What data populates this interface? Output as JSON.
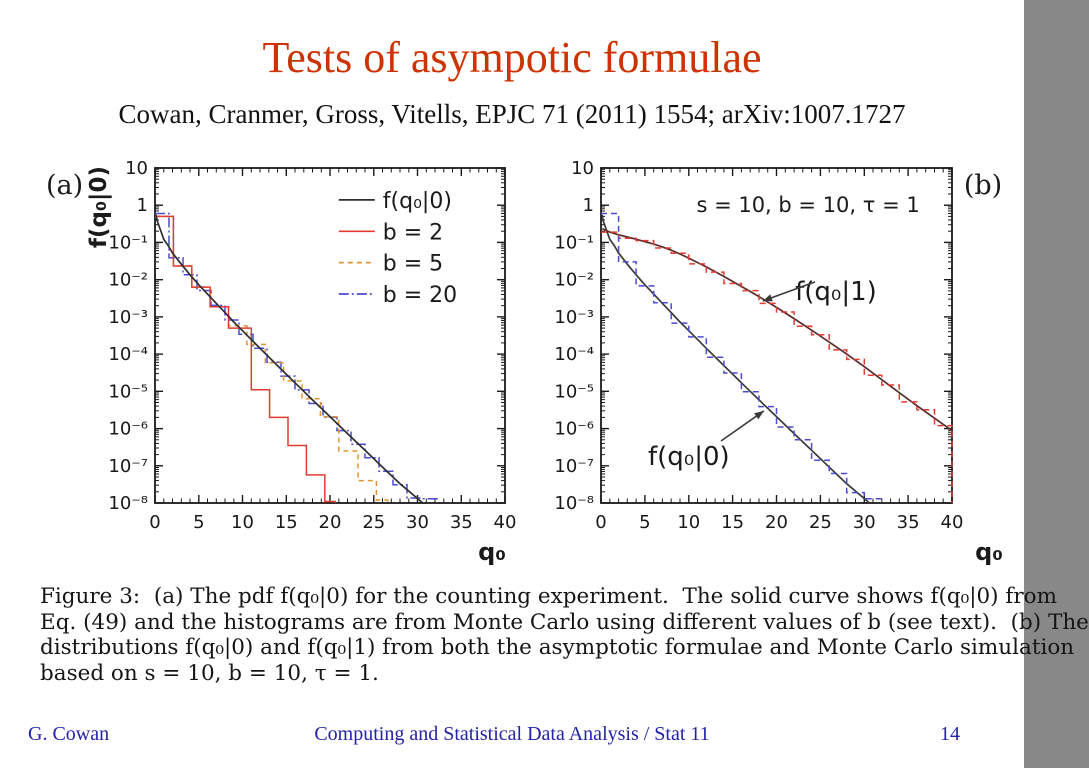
{
  "slide": {
    "title": "Tests of asympotic formulae",
    "citation": "Cowan, Cranmer, Gross, Vitells, EPJC 71 (2011) 1554; arXiv:1007.1727",
    "colors": {
      "title": "#cc3300",
      "footer": "#2323a8",
      "axis": "#1a1a1a",
      "red": "#e23b32",
      "orange": "#df9632",
      "blue": "#4a4ad2",
      "black_curve": "#2e2e2e",
      "maroon_curve": "#5a2d2d"
    }
  },
  "caption": {
    "lines": [
      "Figure 3:  (a) The pdf f(q₀|0) for the counting experiment.  The solid curve shows f(q₀|0) from",
      "Eq. (49) and the histograms are from Monte Carlo using different values of b (see text).  (b) The",
      "distributions f(q₀|0) and f(q₀|1) from both the asymptotic formulae and Monte Carlo simulation",
      "based on s = 10, b = 10, τ = 1."
    ]
  },
  "footer": {
    "author": "G. Cowan",
    "course": "Computing and Statistical Data Analysis / Stat 11",
    "page": "14"
  },
  "chart_data": [
    {
      "panel": "(a)",
      "type": "line",
      "xlabel": "q₀",
      "ylabel": "f(q₀|0)",
      "xlim": [
        0,
        40
      ],
      "ylim_exponents": [
        -8,
        1
      ],
      "x_major_ticks": [
        0,
        5,
        10,
        15,
        20,
        25,
        30,
        35,
        40
      ],
      "y_decades": [
        1,
        0,
        -1,
        -2,
        -3,
        -4,
        -5,
        -6,
        -7,
        -8
      ],
      "grid": false,
      "legend": {
        "fx": 0.525,
        "fy": 0.119,
        "dy": 0.0937,
        "entries": [
          {
            "label": "f(q₀|0)",
            "color": "#2e2e2e",
            "dash": "",
            "width": 1.7
          },
          {
            "label": "b = 2",
            "color": "#e23b32",
            "dash": "",
            "width": 1.7
          },
          {
            "label": "b = 5",
            "color": "#df9632",
            "dash": "5 4",
            "width": 1.7
          },
          {
            "label": "b = 20",
            "color": "#4a4ad2",
            "dash": "10 3 2 3",
            "width": 1.7
          }
        ]
      },
      "series": [
        {
          "name": "hist-b20",
          "kind": "hist",
          "color": "#4a4ad2",
          "width": 1.5,
          "dash": "10 3 2 3",
          "edges": [
            0,
            1.6,
            3.2,
            4.8,
            6.4,
            8,
            9.6,
            11.2,
            12.8,
            14.4,
            16,
            17.6,
            19.2,
            20.8,
            22.4,
            24,
            25.6,
            27.2,
            28.8,
            30.4,
            32.2
          ],
          "values": [
            0.6,
            0.0388,
            0.0135,
            0.00513,
            0.00203,
            0.000827,
            0.00034,
            0.000143,
            6.01e-05,
            2.56e-05,
            1.09e-05,
            4.7e-06,
            2.02e-06,
            8.8e-07,
            3.8e-07,
            1.64e-07,
            7.1e-08,
            3.1e-08,
            1.36e-08,
            1.3e-08
          ]
        },
        {
          "name": "hist-b5",
          "kind": "hist",
          "color": "#df9632",
          "width": 1.5,
          "dash": "5 4",
          "edges": [
            0,
            2.1,
            4.2,
            6.3,
            8.4,
            10.5,
            12.6,
            14.7,
            16.8,
            18.9,
            21,
            23.2,
            25.3,
            26.6
          ],
          "values": [
            0.5,
            0.0233,
            0.0063,
            0.00187,
            0.000578,
            0.000182,
            5.85e-05,
            1.91e-05,
            6.3e-06,
            2.07e-06,
            2.5e-07,
            4e-08,
            1.2e-08
          ]
        },
        {
          "name": "hist-b2",
          "kind": "hist",
          "color": "#e23b32",
          "width": 1.5,
          "dash": "",
          "edges": [
            0,
            2.1,
            4.2,
            6.3,
            8.4,
            11,
            13.1,
            15.2,
            17.3,
            19.4,
            20.6
          ],
          "values": [
            0.5,
            0.0233,
            0.0063,
            0.00187,
            0.0005,
            1.1e-05,
            2e-06,
            3.5e-07,
            5.7e-08,
            1.1e-08
          ]
        },
        {
          "name": "curve-fq0-asymptotic",
          "kind": "curve",
          "color": "#2e2e2e",
          "width": 1.7,
          "dash": "",
          "points": [
            [
              0.12,
              0.55
            ],
            [
              0.25,
              0.38
            ],
            [
              0.5,
              0.26
            ],
            [
              1,
              0.121
            ],
            [
              1.5,
              0.083
            ],
            [
              2,
              0.052
            ],
            [
              3,
              0.026
            ],
            [
              4,
              0.0135
            ],
            [
              5,
              0.0073
            ],
            [
              6,
              0.0041
            ],
            [
              7,
              0.0023
            ],
            [
              8,
              0.0013
            ],
            [
              9,
              0.00073
            ],
            [
              10,
              0.000425
            ],
            [
              12,
              0.000143
            ],
            [
              14,
              4.9e-05
            ],
            [
              16,
              1.7e-05
            ],
            [
              18,
              5.9e-06
            ],
            [
              20,
              2.1e-06
            ],
            [
              22,
              7.3e-07
            ],
            [
              24,
              2.6e-07
            ],
            [
              26,
              9.2e-08
            ],
            [
              28,
              3.3e-08
            ],
            [
              30.6,
              1e-08
            ]
          ]
        }
      ],
      "annotations": []
    },
    {
      "panel": "(b)",
      "type": "line",
      "xlabel": "q₀",
      "ylabel": null,
      "inner_title": "s = 10, b = 10, τ = 1",
      "inner_title_pos": {
        "fx": 0.59,
        "fy": 0.131
      },
      "xlim": [
        0,
        40
      ],
      "ylim_exponents": [
        -8,
        1
      ],
      "x_major_ticks": [
        0,
        5,
        10,
        15,
        20,
        25,
        30,
        35,
        40
      ],
      "y_decades": [
        1,
        0,
        -1,
        -2,
        -3,
        -4,
        -5,
        -6,
        -7,
        -8
      ],
      "grid": false,
      "series": [
        {
          "name": "curve-fq0-given0",
          "kind": "curve",
          "color": "#3a3a3a",
          "width": 1.7,
          "dash": "",
          "points": [
            [
              0.12,
              0.55
            ],
            [
              0.25,
              0.38
            ],
            [
              0.5,
              0.26
            ],
            [
              1,
              0.121
            ],
            [
              1.5,
              0.083
            ],
            [
              2,
              0.052
            ],
            [
              3,
              0.026
            ],
            [
              4,
              0.0135
            ],
            [
              5,
              0.0073
            ],
            [
              6,
              0.0041
            ],
            [
              7,
              0.0023
            ],
            [
              8,
              0.0013
            ],
            [
              9,
              0.00073
            ],
            [
              10,
              0.000425
            ],
            [
              12,
              0.000143
            ],
            [
              14,
              4.9e-05
            ],
            [
              16,
              1.7e-05
            ],
            [
              18,
              5.9e-06
            ],
            [
              20,
              2.1e-06
            ],
            [
              22,
              7.3e-07
            ],
            [
              24,
              2.6e-07
            ],
            [
              26,
              9.2e-08
            ],
            [
              28,
              3.3e-08
            ],
            [
              30.6,
              1e-08
            ]
          ]
        },
        {
          "name": "curve-fq0-given1",
          "kind": "curve",
          "color": "#5a2d2d",
          "width": 1.7,
          "dash": "",
          "points": [
            [
              0.15,
              0.235
            ],
            [
              0.5,
              0.215
            ],
            [
              1,
              0.19
            ],
            [
              2,
              0.16
            ],
            [
              3,
              0.14
            ],
            [
              4,
              0.122
            ],
            [
              5,
              0.105
            ],
            [
              6,
              0.09
            ],
            [
              7,
              0.076
            ],
            [
              8,
              0.062
            ],
            [
              9,
              0.049
            ],
            [
              10,
              0.038
            ],
            [
              11,
              0.029
            ],
            [
              12,
              0.022
            ],
            [
              14,
              0.0122
            ],
            [
              16,
              0.0066
            ],
            [
              18,
              0.0035
            ],
            [
              20,
              0.0018
            ],
            [
              22,
              0.0009
            ],
            [
              24,
              0.00044
            ],
            [
              26,
              0.00021
            ],
            [
              28,
              0.0001
            ],
            [
              30,
              4.6e-05
            ],
            [
              32,
              2.05e-05
            ],
            [
              34,
              9.2e-06
            ],
            [
              36,
              4.1e-06
            ],
            [
              38,
              1.9e-06
            ],
            [
              40,
              8.8e-07
            ]
          ]
        },
        {
          "name": "hist-fq0-given1-mc",
          "kind": "hist",
          "color": "#e23b32",
          "width": 1.5,
          "dash": "6 4",
          "edges": [
            0,
            2,
            4,
            6,
            8,
            10,
            12,
            14,
            16,
            18,
            20,
            22,
            24,
            26,
            28,
            30,
            32,
            34,
            36,
            38,
            40
          ],
          "values": [
            0.19,
            0.13,
            0.112,
            0.071,
            0.051,
            0.0265,
            0.016,
            0.0079,
            0.0051,
            0.0023,
            0.00135,
            0.00056,
            0.00033,
            0.00013,
            7.2e-05,
            2.7e-05,
            1.48e-05,
            5.2e-06,
            3.2e-06,
            1.2e-06
          ]
        },
        {
          "name": "hist-fq0-given0-mc",
          "kind": "hist",
          "color": "#4a4ad2",
          "width": 1.5,
          "dash": "6 4",
          "edges": [
            0,
            2,
            4,
            6,
            8,
            10,
            12,
            14,
            16,
            18,
            20,
            22,
            24,
            26,
            28,
            30,
            32
          ],
          "values": [
            0.6,
            0.03,
            0.0068,
            0.0024,
            0.00068,
            0.00029,
            8.2e-05,
            3.1e-05,
            9.8e-06,
            3.9e-06,
            1.1e-06,
            5e-07,
            1.4e-07,
            6.2e-08,
            1.9e-08,
            1.3e-08
          ]
        }
      ],
      "annotations": [
        {
          "text": "f(q₀|1)",
          "fx": 0.553,
          "fy": 0.394,
          "anchor": "start",
          "arrow": {
            "fx1": 0.61,
            "fy1": 0.34,
            "fx2": 0.461,
            "fy2": 0.397
          }
        },
        {
          "text": "f(q₀|0)",
          "fx": 0.134,
          "fy": 0.886,
          "anchor": "start",
          "arrow": {
            "fx1": 0.342,
            "fy1": 0.815,
            "fx2": 0.464,
            "fy2": 0.725
          }
        }
      ]
    }
  ]
}
